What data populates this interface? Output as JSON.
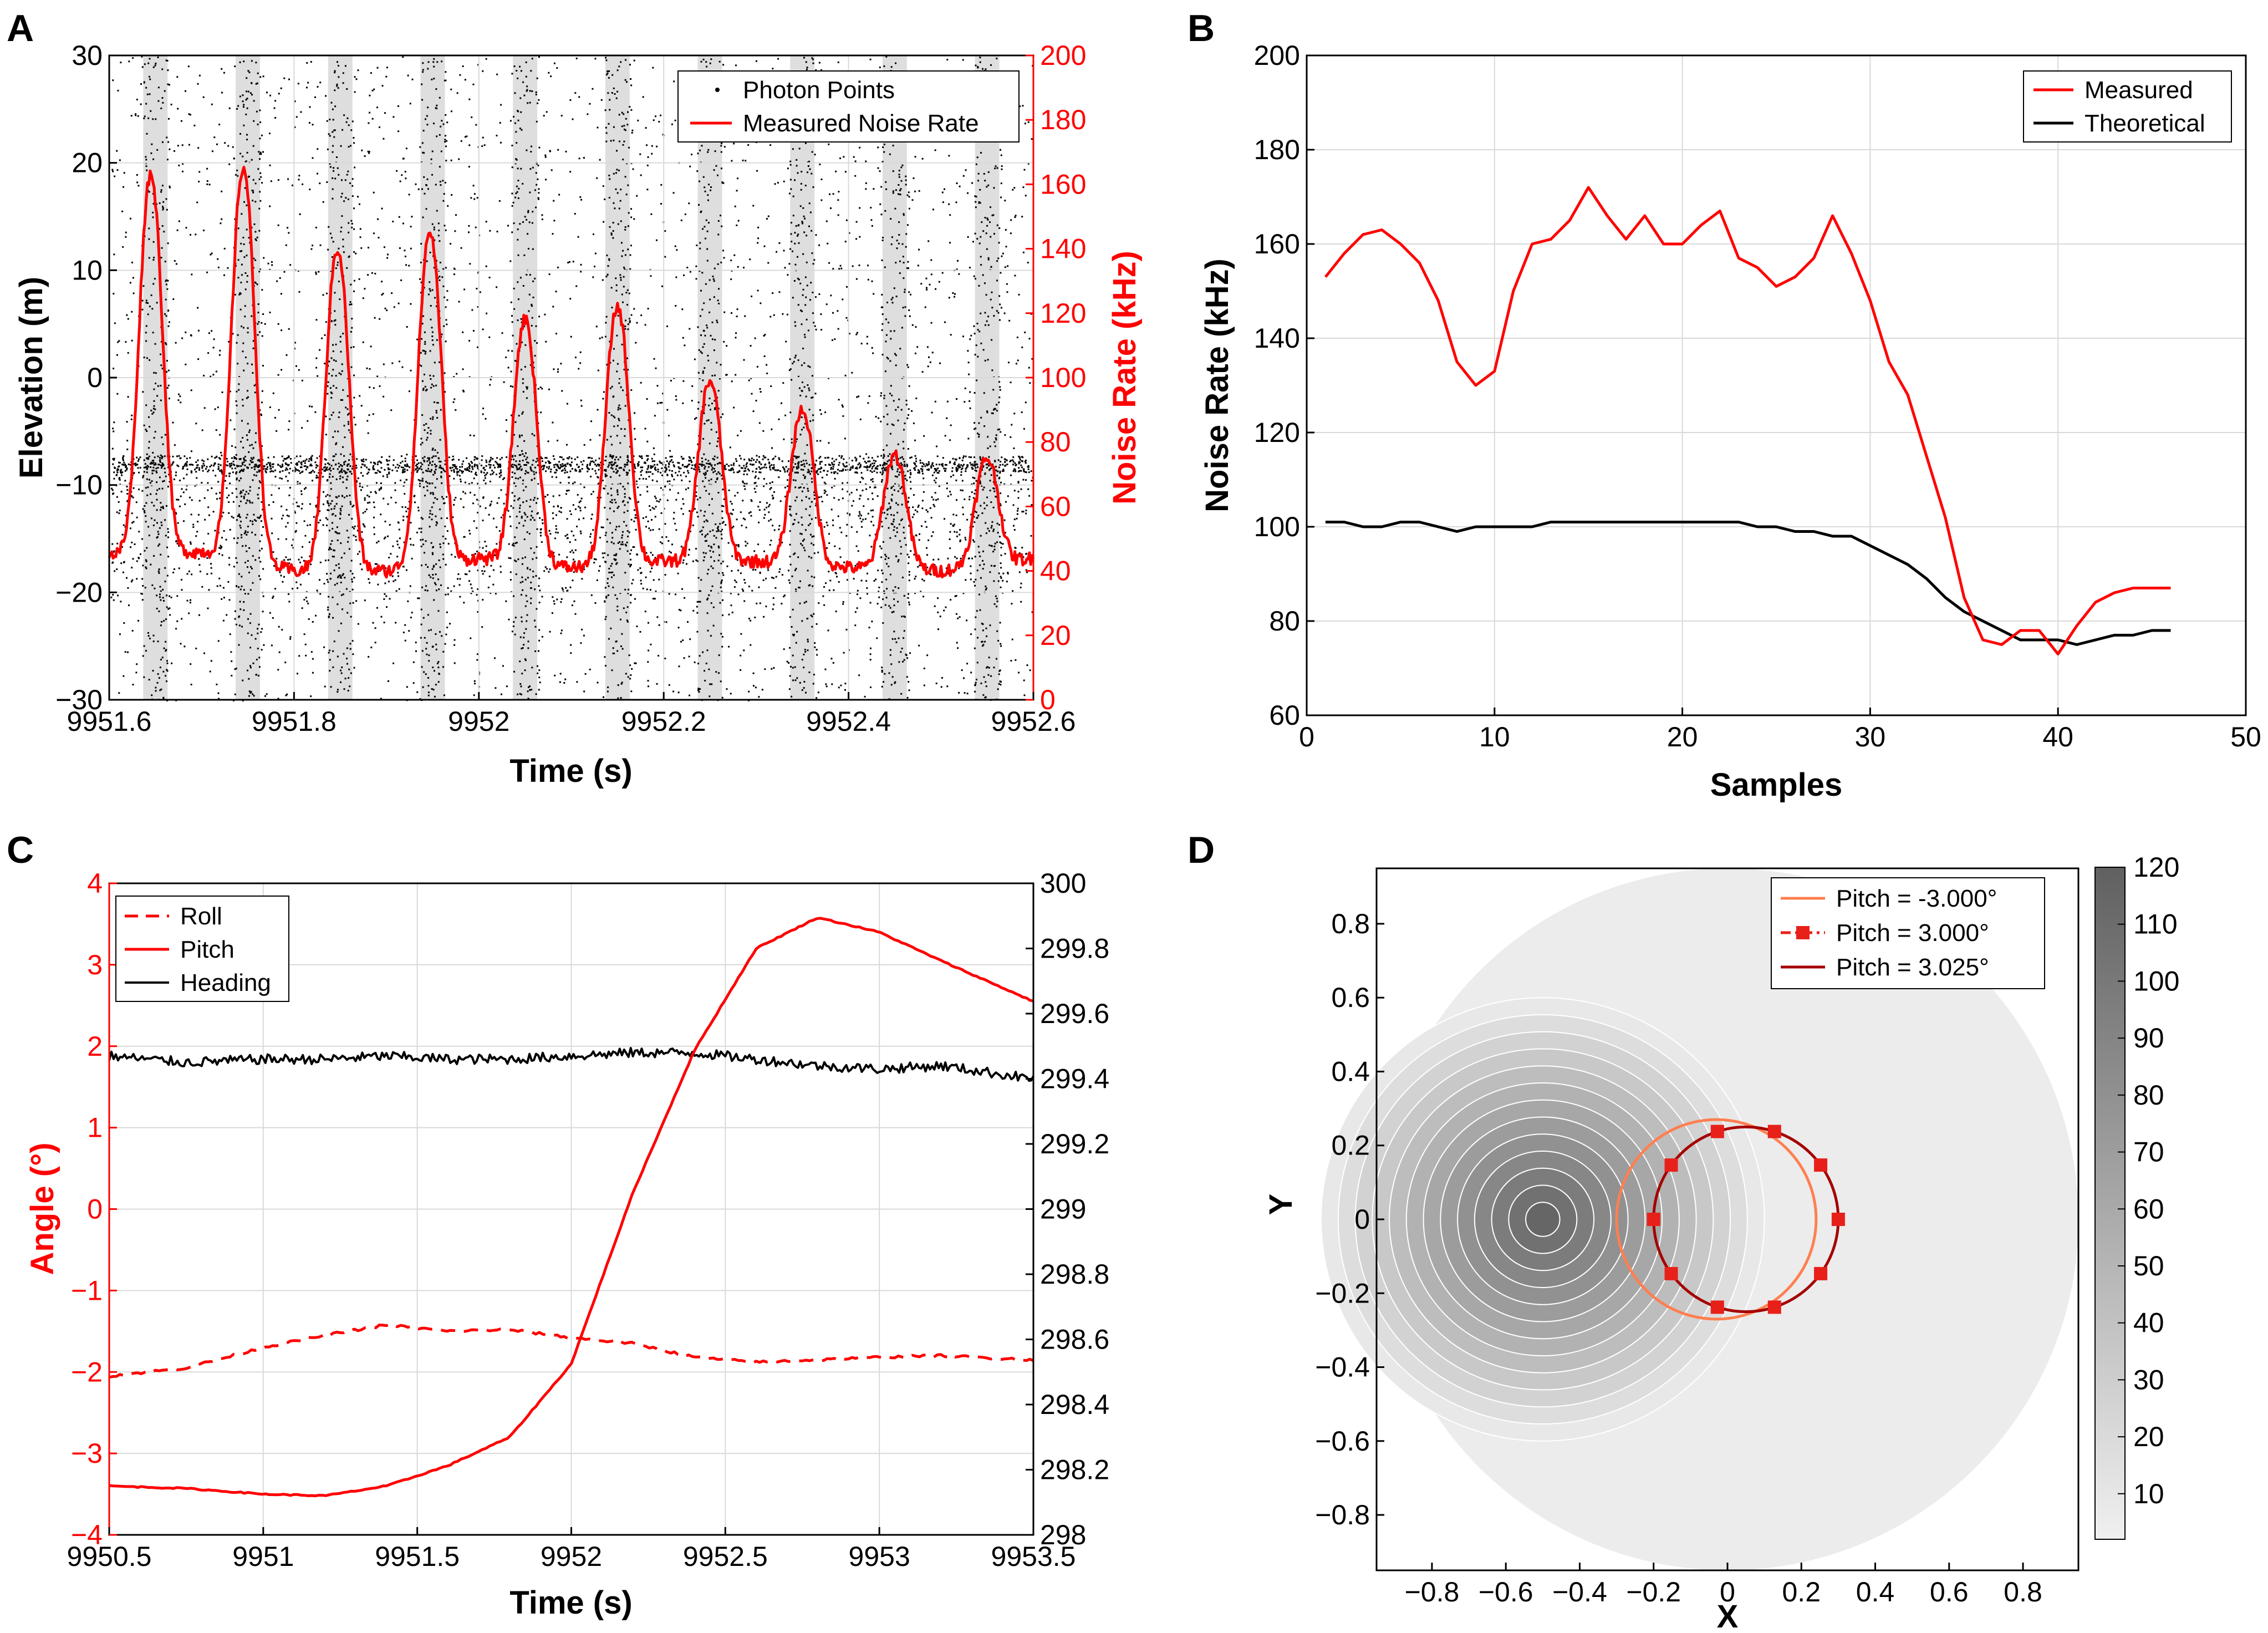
{
  "figure": {
    "panels": [
      {
        "id": "A",
        "label": "A"
      },
      {
        "id": "B",
        "label": "B"
      },
      {
        "id": "C",
        "label": "C"
      },
      {
        "id": "D",
        "label": "D"
      }
    ]
  },
  "colors": {
    "red": "#ff0000",
    "black": "#000000",
    "lightorange": "#ff7f50",
    "darkred": "#a50000",
    "grid": "#d9d9d9",
    "disk": "#ececec"
  },
  "chart_data": [
    {
      "panel": "A",
      "type": "scatter",
      "title": "",
      "xlabel": "Time (s)",
      "ylabel": "Elevation (m)",
      "ylabel_right": "Noise Rate (kHz)",
      "xlim": [
        9951.6,
        9952.6
      ],
      "ylim": [
        -30,
        30
      ],
      "ylim_right": [
        0,
        200
      ],
      "xticks": [
        9951.6,
        9951.8,
        9952,
        9952.2,
        9952.4,
        9952.6
      ],
      "xtick_labels": [
        "9951.6",
        "9951.8",
        "9952",
        "9952.2",
        "9952.4",
        "9952.6"
      ],
      "yticks": [
        -30,
        -20,
        -10,
        0,
        10,
        20,
        30
      ],
      "ytick_labels": [
        "−30",
        "−20",
        "−10",
        "0",
        "10",
        "20",
        "30"
      ],
      "yticks_right": [
        0,
        20,
        40,
        60,
        80,
        100,
        120,
        140,
        160,
        180,
        200
      ],
      "ytick_labels_right": [
        "0",
        "20",
        "40",
        "60",
        "80",
        "100",
        "120",
        "140",
        "160",
        "180",
        "200"
      ],
      "grid": true,
      "legend": {
        "position": "top-right",
        "entries": [
          "Photon Points",
          "Measured Noise Rate"
        ]
      },
      "series": [
        {
          "name": "Photon Points",
          "kind": "scatter",
          "description_surface_elevation_m": -8,
          "noise_band_centers_s": [
            9951.65,
            9951.75,
            9951.85,
            9951.95,
            9952.05,
            9952.15,
            9952.25,
            9952.35,
            9952.45,
            9952.55
          ]
        },
        {
          "name": "Measured Noise Rate",
          "kind": "line",
          "axis": "right",
          "peaks": [
            {
              "t": 9951.645,
              "v": 163
            },
            {
              "t": 9951.745,
              "v": 165
            },
            {
              "t": 9951.847,
              "v": 140
            },
            {
              "t": 9951.947,
              "v": 145
            },
            {
              "t": 9952.05,
              "v": 118
            },
            {
              "t": 9952.15,
              "v": 122
            },
            {
              "t": 9952.25,
              "v": 99
            },
            {
              "t": 9952.35,
              "v": 90
            },
            {
              "t": 9952.45,
              "v": 76
            },
            {
              "t": 9952.55,
              "v": 75
            }
          ],
          "troughs": [
            {
              "t": 9951.6,
              "v": 45
            },
            {
              "t": 9951.7,
              "v": 46
            },
            {
              "t": 9951.8,
              "v": 40
            },
            {
              "t": 9951.9,
              "v": 40
            },
            {
              "t": 9952.0,
              "v": 44
            },
            {
              "t": 9952.1,
              "v": 41
            },
            {
              "t": 9952.2,
              "v": 43
            },
            {
              "t": 9952.3,
              "v": 43
            },
            {
              "t": 9952.4,
              "v": 41
            },
            {
              "t": 9952.5,
              "v": 40
            },
            {
              "t": 9952.6,
              "v": 44
            }
          ]
        }
      ]
    },
    {
      "panel": "B",
      "type": "line",
      "title": "",
      "xlabel": "Samples",
      "ylabel": "Noise Rate (kHz)",
      "xlim": [
        0,
        50
      ],
      "ylim": [
        60,
        200
      ],
      "xticks": [
        0,
        10,
        20,
        30,
        40,
        50
      ],
      "xtick_labels": [
        "0",
        "10",
        "20",
        "30",
        "40",
        "50"
      ],
      "yticks": [
        60,
        80,
        100,
        120,
        140,
        160,
        180,
        200
      ],
      "ytick_labels": [
        "60",
        "80",
        "100",
        "120",
        "140",
        "160",
        "180",
        "200"
      ],
      "grid": true,
      "legend": {
        "position": "top-right",
        "entries": [
          "Measured",
          "Theoretical"
        ]
      },
      "x": [
        1,
        2,
        3,
        4,
        5,
        6,
        7,
        8,
        9,
        10,
        11,
        12,
        13,
        14,
        15,
        16,
        17,
        18,
        19,
        20,
        21,
        22,
        23,
        24,
        25,
        26,
        27,
        28,
        29,
        30,
        31,
        32,
        33,
        34,
        35,
        36,
        37,
        38,
        39,
        40,
        41,
        42,
        43,
        44,
        45,
        46
      ],
      "series": [
        {
          "name": "Measured",
          "values": [
            153,
            158,
            162,
            163,
            160,
            156,
            148,
            135,
            130,
            133,
            150,
            160,
            161,
            165,
            172,
            166,
            161,
            166,
            160,
            160,
            164,
            167,
            157,
            155,
            151,
            153,
            157,
            166,
            158,
            148,
            135,
            128,
            115,
            102,
            85,
            76,
            75,
            78,
            78,
            73,
            79,
            84,
            86,
            87,
            87,
            87
          ]
        },
        {
          "name": "Theoretical",
          "values": [
            101,
            101,
            100,
            100,
            101,
            101,
            100,
            99,
            100,
            100,
            100,
            100,
            101,
            101,
            101,
            101,
            101,
            101,
            101,
            101,
            101,
            101,
            101,
            100,
            100,
            99,
            99,
            98,
            98,
            96,
            94,
            92,
            89,
            85,
            82,
            80,
            78,
            76,
            76,
            76,
            75,
            76,
            77,
            77,
            78,
            78
          ]
        }
      ]
    },
    {
      "panel": "C",
      "type": "line",
      "title": "",
      "xlabel": "Time (s)",
      "ylabel": "Angle (°)",
      "xlim": [
        9950.5,
        9953.5
      ],
      "ylim": [
        -4,
        4
      ],
      "ylim_right": [
        298,
        300
      ],
      "xticks": [
        9950.5,
        9951,
        9951.5,
        9952,
        9952.5,
        9953,
        9953.5
      ],
      "xtick_labels": [
        "9950.5",
        "9951",
        "9951.5",
        "9952",
        "9952.5",
        "9953",
        "9953.5"
      ],
      "yticks": [
        -4,
        -3,
        -2,
        -1,
        0,
        1,
        2,
        3,
        4
      ],
      "ytick_labels": [
        "−4",
        "−3",
        "−2",
        "−1",
        "0",
        "1",
        "2",
        "3",
        "4"
      ],
      "yticks_right": [
        298,
        298.2,
        298.4,
        298.6,
        298.8,
        299,
        299.2,
        299.4,
        299.6,
        299.8,
        300
      ],
      "ytick_labels_right": [
        "298",
        "298.2",
        "298.4",
        "298.6",
        "298.8",
        "299",
        "299.2",
        "299.4",
        "299.6",
        "299.8",
        "300"
      ],
      "grid": true,
      "legend": {
        "position": "top-left",
        "entries": [
          "Roll",
          "Pitch",
          "Heading"
        ]
      },
      "x": [
        9950.5,
        9950.75,
        9951.0,
        9951.2,
        9951.4,
        9951.6,
        9951.8,
        9952.0,
        9952.2,
        9952.4,
        9952.6,
        9952.8,
        9953.0,
        9953.2,
        9953.5
      ],
      "series": [
        {
          "name": "Roll",
          "axis": "left",
          "style": "dashed",
          "values": [
            -2.05,
            -1.95,
            -1.7,
            -1.55,
            -1.42,
            -1.5,
            -1.48,
            -1.58,
            -1.65,
            -1.82,
            -1.88,
            -1.85,
            -1.82,
            -1.8,
            -1.85
          ]
        },
        {
          "name": "Pitch",
          "axis": "left",
          "style": "solid",
          "values": [
            -3.4,
            -3.43,
            -3.5,
            -3.52,
            -3.4,
            -3.15,
            -2.8,
            -1.9,
            0.2,
            1.95,
            3.2,
            3.58,
            3.4,
            3.05,
            2.55
          ]
        },
        {
          "name": "Heading",
          "axis": "right",
          "style": "solid",
          "values": [
            299.47,
            299.45,
            299.46,
            299.46,
            299.47,
            299.46,
            299.46,
            299.47,
            299.48,
            299.48,
            299.46,
            299.44,
            299.43,
            299.44,
            299.4
          ]
        }
      ]
    },
    {
      "panel": "D",
      "type": "heatmap",
      "title": "",
      "xlabel": "X",
      "ylabel": "Y",
      "xlim": [
        -0.95,
        0.95
      ],
      "ylim": [
        -0.95,
        0.95
      ],
      "xticks": [
        -0.8,
        -0.6,
        -0.4,
        -0.2,
        0,
        0.2,
        0.4,
        0.6,
        0.8
      ],
      "xtick_labels": [
        "−0.8",
        "−0.6",
        "−0.4",
        "−0.2",
        "0",
        "0.2",
        "0.4",
        "0.6",
        "0.8"
      ],
      "yticks": [
        -0.8,
        -0.6,
        -0.4,
        -0.2,
        0,
        0.2,
        0.4,
        0.6,
        0.8
      ],
      "ytick_labels": [
        "−0.8",
        "−0.6",
        "−0.4",
        "−0.2",
        "0",
        "0.2",
        "0.4",
        "0.6",
        "0.8"
      ],
      "grid": false,
      "disk": {
        "center": [
          0,
          0
        ],
        "radius": 0.95
      },
      "hotspot": {
        "center": [
          -0.5,
          0
        ],
        "levels": 13,
        "max_radius": 0.6
      },
      "colorbar": {
        "min": 2,
        "max": 120,
        "ticks": [
          10,
          20,
          30,
          40,
          50,
          60,
          70,
          80,
          90,
          100,
          110,
          120
        ],
        "tick_labels": [
          "10",
          "20",
          "30",
          "40",
          "50",
          "60",
          "70",
          "80",
          "90",
          "100",
          "110",
          "120"
        ]
      },
      "legend": {
        "position": "top-right",
        "entries": [
          "Pitch = -3.000°",
          "Pitch = 3.000°",
          "Pitch = 3.025°"
        ]
      },
      "series": [
        {
          "name": "Pitch = -3.000°",
          "kind": "circle",
          "center": [
            -0.03,
            0.0
          ],
          "radius": 0.27
        },
        {
          "name": "Pitch = 3.000°",
          "kind": "markers",
          "center": [
            0.05,
            0.0
          ],
          "radius": 0.25,
          "count": 10
        },
        {
          "name": "Pitch = 3.025°",
          "kind": "circle",
          "center": [
            0.05,
            0.0
          ],
          "radius": 0.25
        }
      ]
    }
  ]
}
